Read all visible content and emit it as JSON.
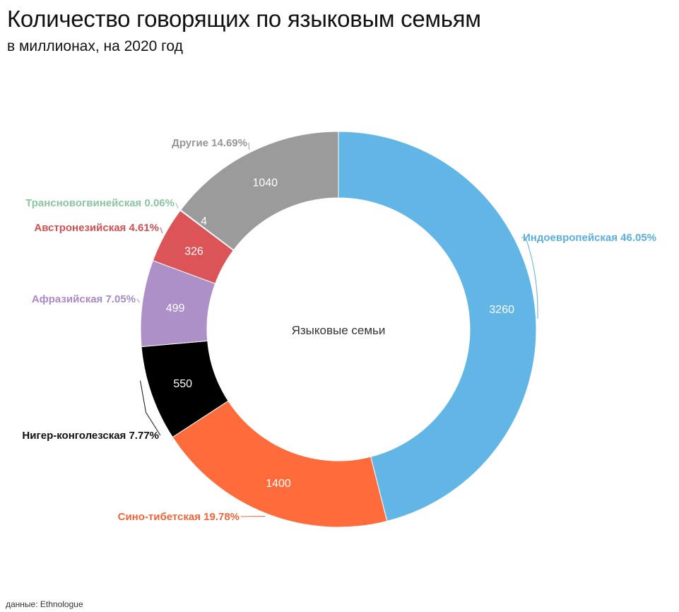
{
  "header": {
    "title": "Количество говорящих по языковым семьям",
    "subtitle": "в миллионах, на 2020 год"
  },
  "footer": {
    "source": "данные: Ethnologue"
  },
  "chart_data": {
    "type": "pie",
    "donut": true,
    "center_label": "Языковые семьи",
    "unit": "millions of speakers",
    "slices": [
      {
        "name": "Индоевропейская",
        "value": 3260,
        "percent_label": "46.05%",
        "color": "#62b6e5",
        "label_color": "#5aaee0",
        "value_color": "#ffffff"
      },
      {
        "name": "Сино-тибетская",
        "value": 1400,
        "percent_label": "19.78%",
        "color": "#ff6b3b",
        "label_color": "#f2653a",
        "value_color": "#ffffff"
      },
      {
        "name": "Нигер-конголезская",
        "value": 550,
        "percent_label": "7.77%",
        "color": "#000000",
        "label_color": "#111111",
        "value_color": "#ffffff"
      },
      {
        "name": "Афразийская",
        "value": 499,
        "percent_label": "7.05%",
        "color": "#ad90c8",
        "label_color": "#a98ac6",
        "value_color": "#ffffff"
      },
      {
        "name": "Австронезийская",
        "value": 326,
        "percent_label": "4.61%",
        "color": "#dc5457",
        "label_color": "#d84d50",
        "value_color": "#ffffff"
      },
      {
        "name": "Трансновогвинейская",
        "value": 4,
        "percent_label": "0.06%",
        "color": "#8fc8a3",
        "label_color": "#8bc5a0",
        "value_color": "#ffffff"
      },
      {
        "name": "Другие",
        "value": 1040,
        "percent_label": "14.69%",
        "color": "#9b9b9b",
        "label_color": "#969696",
        "value_color": "#ffffff"
      }
    ]
  }
}
